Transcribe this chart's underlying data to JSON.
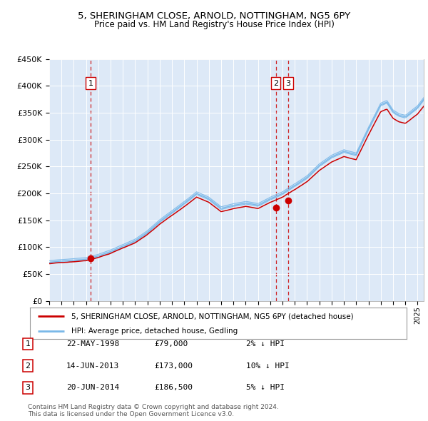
{
  "title": "5, SHERINGHAM CLOSE, ARNOLD, NOTTINGHAM, NG5 6PY",
  "subtitle": "Price paid vs. HM Land Registry's House Price Index (HPI)",
  "bg_color": "#dde9f7",
  "hpi_color": "#7ab8e8",
  "hpi_fill_color": "#aad0f0",
  "price_color": "#cc0000",
  "dashed_color": "#cc0000",
  "ylim": [
    0,
    450000
  ],
  "yticks": [
    0,
    50000,
    100000,
    150000,
    200000,
    250000,
    300000,
    350000,
    400000,
    450000
  ],
  "ytick_labels": [
    "£0",
    "£50K",
    "£100K",
    "£150K",
    "£200K",
    "£250K",
    "£300K",
    "£350K",
    "£400K",
    "£450K"
  ],
  "sales": [
    {
      "date_num": 1998.38,
      "price": 79000,
      "label": "1"
    },
    {
      "date_num": 2013.45,
      "price": 173000,
      "label": "2"
    },
    {
      "date_num": 2014.46,
      "price": 186500,
      "label": "3"
    }
  ],
  "sale_table": [
    {
      "num": "1",
      "date": "22-MAY-1998",
      "price": "£79,000",
      "rel": "2% ↓ HPI"
    },
    {
      "num": "2",
      "date": "14-JUN-2013",
      "price": "£173,000",
      "rel": "10% ↓ HPI"
    },
    {
      "num": "3",
      "date": "20-JUN-2014",
      "price": "£186,500",
      "rel": "5% ↓ HPI"
    }
  ],
  "legend_line1": "5, SHERINGHAM CLOSE, ARNOLD, NOTTINGHAM, NG5 6PY (detached house)",
  "legend_line2": "HPI: Average price, detached house, Gedling",
  "footnote": "Contains HM Land Registry data © Crown copyright and database right 2024.\nThis data is licensed under the Open Government Licence v3.0.",
  "xmin": 1995.0,
  "xmax": 2025.5,
  "hpi_anchors_x": [
    1995,
    1997,
    1998,
    1999,
    2000,
    2001,
    2002,
    2003,
    2004,
    2005,
    2006,
    2007,
    2008,
    2009,
    2010,
    2011,
    2012,
    2013,
    2014,
    2015,
    2016,
    2017,
    2018,
    2019,
    2020,
    2021,
    2022,
    2022.5,
    2023,
    2023.5,
    2024,
    2025,
    2025.5
  ],
  "hpi_anchors_y": [
    72000,
    76000,
    78000,
    84000,
    92000,
    102000,
    112000,
    128000,
    148000,
    165000,
    182000,
    200000,
    190000,
    172000,
    178000,
    182000,
    178000,
    190000,
    200000,
    215000,
    230000,
    252000,
    268000,
    278000,
    272000,
    320000,
    365000,
    370000,
    352000,
    345000,
    342000,
    360000,
    375000
  ],
  "price_scale": 0.965,
  "n_points": 400
}
